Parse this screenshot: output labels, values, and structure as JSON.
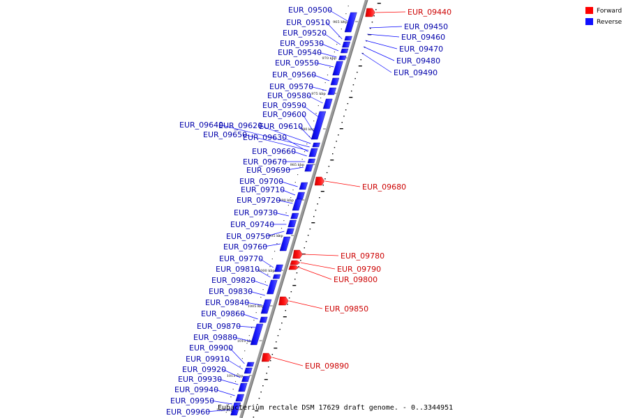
{
  "caption": "Eubacterium rectale DSM 17629 draft genome. - 0..3344951",
  "colors": {
    "forward": "#ff0000",
    "reverse": "#1010ff",
    "backbone": "#999999"
  },
  "legend": [
    {
      "label": "Forward",
      "color": "#ff0000"
    },
    {
      "label": "Reverse",
      "color": "#1010ff"
    }
  ],
  "scale_ticks": [
    "965 kbp",
    "970 kbp",
    "975 kbp",
    "980 kbp",
    "985 kbp",
    "990 kbp",
    "995 kbp",
    "1000 kbp",
    "1005 kbp",
    "1010 kbp",
    "1015 kbp",
    "1020 kbp"
  ],
  "reverse_genes": [
    "EUR_09500",
    "EUR_09510",
    "EUR_09520",
    "EUR_09530",
    "EUR_09540",
    "EUR_09550",
    "EUR_09560",
    "EUR_09570",
    "EUR_09580",
    "EUR_09590",
    "EUR_09600",
    "EUR_09610",
    "EUR_09620",
    "EUR_09640",
    "EUR_09650",
    "EUR_09630",
    "EUR_09660",
    "EUR_09670",
    "EUR_09690",
    "EUR_09700",
    "EUR_09710",
    "EUR_09720",
    "EUR_09730",
    "EUR_09740",
    "EUR_09750",
    "EUR_09760",
    "EUR_09770",
    "EUR_09810",
    "EUR_09820",
    "EUR_09830",
    "EUR_09840",
    "EUR_09860",
    "EUR_09870",
    "EUR_09880",
    "EUR_09900",
    "EUR_09910",
    "EUR_09920",
    "EUR_09930",
    "EUR_09940",
    "EUR_09950",
    "EUR_09960"
  ],
  "forward_genes": [
    "EUR_09440",
    "EUR_09680",
    "EUR_09780",
    "EUR_09790",
    "EUR_09800",
    "EUR_09850",
    "EUR_09890"
  ],
  "tiny_right_genes": [
    "EUR_09450",
    "EUR_09460",
    "EUR_09470",
    "EUR_09480",
    "EUR_09490"
  ]
}
